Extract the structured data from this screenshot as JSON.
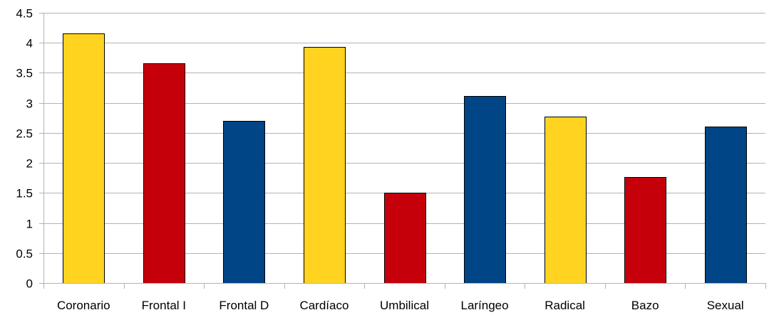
{
  "chart_data": {
    "type": "bar",
    "title": "",
    "xlabel": "",
    "ylabel": "",
    "ylim": [
      0,
      4.5
    ],
    "yticks": [
      "0",
      "0.5",
      "1",
      "1.5",
      "2",
      "2.5",
      "3",
      "3.5",
      "4",
      "4.5"
    ],
    "grid": true,
    "legend": "none",
    "categories": [
      "Coronario",
      "Frontal I",
      "Frontal D",
      "Cardíaco",
      "Umbilical",
      "Laríngeo",
      "Radical",
      "Bazo",
      "Sexual"
    ],
    "values": [
      4.16,
      3.66,
      2.7,
      3.93,
      1.5,
      3.12,
      2.77,
      1.77,
      2.6
    ],
    "bar_colors": [
      "#ffd320",
      "#c5000b",
      "#004586",
      "#ffd320",
      "#c5000b",
      "#004586",
      "#ffd320",
      "#c5000b",
      "#004586"
    ],
    "colors": {
      "yellow": "#ffd320",
      "red": "#c5000b",
      "blue": "#004586",
      "grid": "#b3b3b3"
    }
  }
}
